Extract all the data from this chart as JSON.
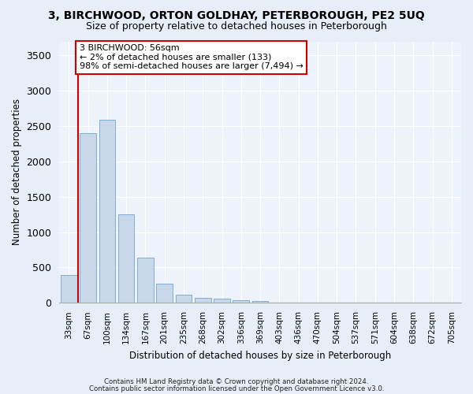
{
  "title1": "3, BIRCHWOOD, ORTON GOLDHAY, PETERBOROUGH, PE2 5UQ",
  "title2": "Size of property relative to detached houses in Peterborough",
  "xlabel": "Distribution of detached houses by size in Peterborough",
  "ylabel": "Number of detached properties",
  "categories": [
    "33sqm",
    "67sqm",
    "100sqm",
    "134sqm",
    "167sqm",
    "201sqm",
    "235sqm",
    "268sqm",
    "302sqm",
    "336sqm",
    "369sqm",
    "403sqm",
    "436sqm",
    "470sqm",
    "504sqm",
    "537sqm",
    "571sqm",
    "604sqm",
    "638sqm",
    "672sqm",
    "705sqm"
  ],
  "values": [
    390,
    2400,
    2590,
    1250,
    640,
    270,
    115,
    65,
    55,
    35,
    25,
    0,
    0,
    0,
    0,
    0,
    0,
    0,
    0,
    0,
    0
  ],
  "bar_color": "#c8d8ea",
  "bar_edgecolor": "#7bafd4",
  "annotation_line_color": "#cc0000",
  "annotation_box_text": "3 BIRCHWOOD: 56sqm\n← 2% of detached houses are smaller (133)\n98% of semi-detached houses are larger (7,494) →",
  "annotation_box_color": "#ffffff",
  "annotation_box_edgecolor": "#cc0000",
  "footer1": "Contains HM Land Registry data © Crown copyright and database right 2024.",
  "footer2": "Contains public sector information licensed under the Open Government Licence v3.0.",
  "ylim": [
    0,
    3700
  ],
  "yticks": [
    0,
    500,
    1000,
    1500,
    2000,
    2500,
    3000,
    3500
  ],
  "bg_color": "#e8eef8",
  "plot_bg_color": "#eef2fa"
}
